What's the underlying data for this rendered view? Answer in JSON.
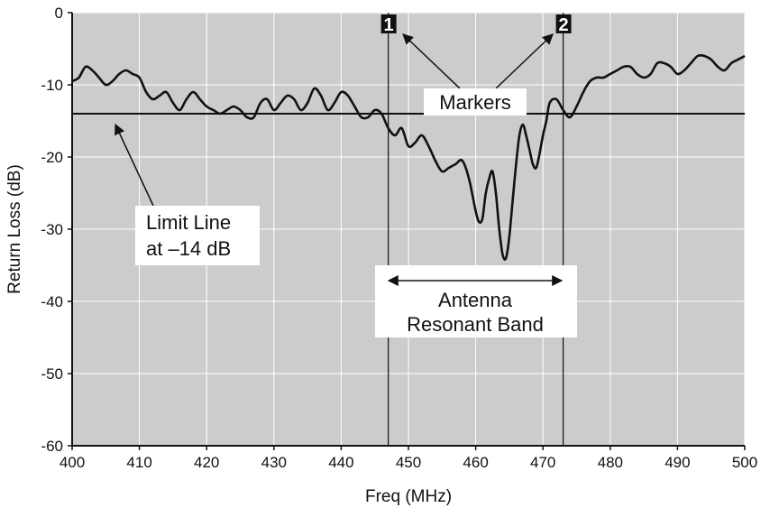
{
  "chart_data": {
    "type": "line",
    "title": "",
    "xlabel": "Freq (MHz)",
    "ylabel": "Return Loss (dB)",
    "xlim": [
      400,
      500
    ],
    "ylim": [
      -60,
      0
    ],
    "xticks": [
      400,
      410,
      420,
      430,
      440,
      450,
      460,
      470,
      480,
      490,
      500
    ],
    "yticks": [
      0,
      -10,
      -20,
      -30,
      -40,
      -50,
      -60
    ],
    "grid": true,
    "background": "#cccccc",
    "line_color": "#111111",
    "series": [
      {
        "x": [
          400,
          401,
          402,
          403,
          404,
          405,
          406,
          407,
          408,
          409,
          410,
          411,
          412,
          413,
          414,
          415,
          416,
          417,
          418,
          419,
          420,
          421,
          422,
          423,
          424,
          425,
          426,
          427,
          428,
          429,
          430,
          431,
          432,
          433,
          434,
          435,
          436,
          437,
          438,
          439,
          440,
          441,
          442,
          443,
          444,
          445,
          446,
          447,
          448,
          449,
          450,
          451,
          452,
          453,
          454,
          455,
          456,
          457,
          458,
          459,
          460,
          460.5,
          461,
          461.5,
          462,
          462.5,
          463,
          463.5,
          464,
          464.5,
          465,
          465.5,
          466,
          466.5,
          467,
          467.5,
          468,
          468.5,
          469,
          469.5,
          470,
          470.5,
          471,
          472,
          473,
          474,
          475,
          476,
          477,
          478,
          479,
          480,
          481,
          482,
          483,
          484,
          485,
          486,
          487,
          488,
          489,
          490,
          491,
          492,
          493,
          494,
          495,
          496,
          497,
          498,
          499,
          500
        ],
        "y": [
          -9.5,
          -9.0,
          -7.5,
          -8.0,
          -9.0,
          -10.0,
          -9.5,
          -8.5,
          -8.0,
          -8.5,
          -9.0,
          -11.0,
          -12.0,
          -11.5,
          -11.0,
          -12.5,
          -13.5,
          -12.0,
          -11.0,
          -12.0,
          -13.0,
          -13.5,
          -14.0,
          -13.5,
          -13.0,
          -13.5,
          -14.5,
          -14.5,
          -12.5,
          -12.0,
          -13.5,
          -12.5,
          -11.5,
          -12.0,
          -13.5,
          -12.5,
          -10.5,
          -11.5,
          -13.5,
          -12.5,
          -11.0,
          -11.5,
          -13.0,
          -14.5,
          -14.5,
          -13.5,
          -14.0,
          -16.0,
          -17.0,
          -16.0,
          -18.5,
          -18.0,
          -17.0,
          -18.5,
          -20.5,
          -22.0,
          -21.5,
          -21.0,
          -20.5,
          -23.0,
          -27.5,
          -29.0,
          -28.5,
          -25.0,
          -23.0,
          -22.0,
          -25.0,
          -30.0,
          -33.5,
          -34.0,
          -31.0,
          -26.0,
          -21.0,
          -17.0,
          -15.5,
          -17.0,
          -19.0,
          -21.0,
          -21.5,
          -19.5,
          -17.0,
          -15.0,
          -12.5,
          -12.0,
          -13.5,
          -14.5,
          -13.0,
          -11.0,
          -9.5,
          -9.0,
          -9.0,
          -8.5,
          -8.0,
          -7.5,
          -7.5,
          -8.5,
          -9.0,
          -8.5,
          -7.0,
          -7.0,
          -7.5,
          -8.5,
          -8.0,
          -7.0,
          -6.0,
          -6.0,
          -6.5,
          -7.5,
          -8.0,
          -7.0,
          -6.5,
          -6.0
        ]
      }
    ],
    "limit_line": {
      "y": -14
    },
    "markers": [
      {
        "label": "1",
        "x": 447
      },
      {
        "label": "2",
        "x": 473
      }
    ],
    "annotations": {
      "markers_label": "Markers",
      "limit_line_label_1": "Limit Line",
      "limit_line_label_2": "at –14 dB",
      "band_label_1": "Antenna",
      "band_label_2": "Resonant Band"
    }
  }
}
